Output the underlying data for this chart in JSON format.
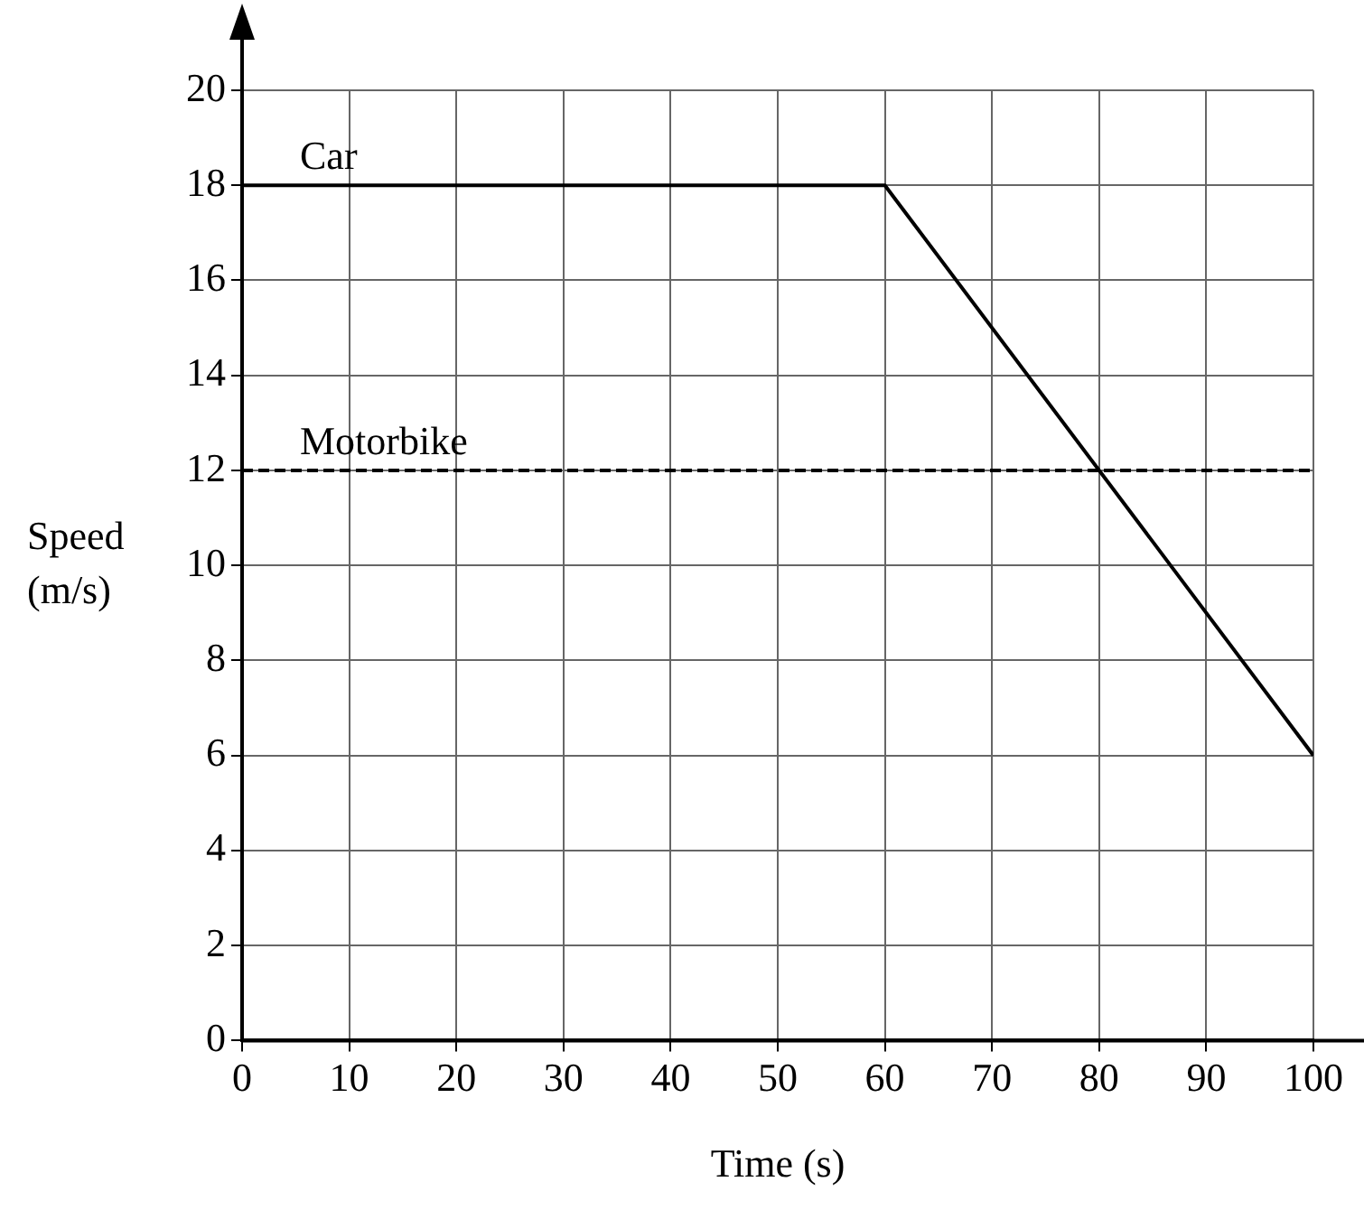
{
  "chart_data": {
    "type": "line",
    "xlabel": "Time (s)",
    "ylabel": "Speed (m/s)",
    "series": [
      {
        "name": "Car",
        "color": "#000000",
        "x": [
          0,
          60,
          100
        ],
        "values": [
          18,
          18,
          6
        ],
        "line_style": "solid"
      },
      {
        "name": "Motorbike",
        "color": "#000000",
        "x": [
          0,
          100
        ],
        "values": [
          12,
          12
        ],
        "line_style": "dashed"
      }
    ],
    "xlim": [
      0,
      100
    ],
    "xticks": [
      0,
      10,
      20,
      30,
      40,
      50,
      60,
      70,
      80,
      90,
      100
    ],
    "ylim": [
      0,
      20
    ],
    "yticks": [
      0,
      2,
      4,
      6,
      8,
      10,
      12,
      14,
      16,
      18,
      20
    ],
    "grid": true,
    "legend": false,
    "marker": "none"
  }
}
